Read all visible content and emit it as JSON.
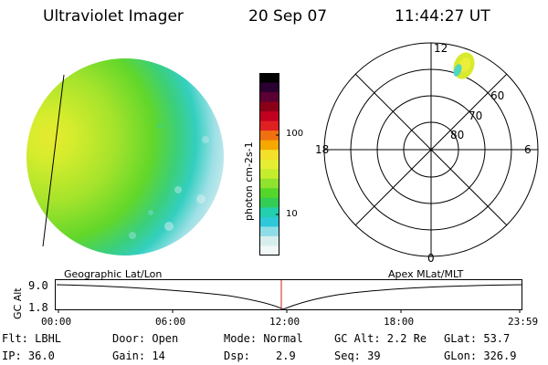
{
  "header": {
    "title": "Ultraviolet Imager",
    "date": "20 Sep 07",
    "time": "11:44:27 UT"
  },
  "colorbar": {
    "unit_label": "photon cm-2s-1",
    "tick_100": "100",
    "tick_10": "10",
    "colors": [
      "#000000",
      "#2a0030",
      "#5b0033",
      "#8a0018",
      "#c2001f",
      "#e02020",
      "#f07010",
      "#f5a800",
      "#f2e02a",
      "#e5ee33",
      "#c5ec2d",
      "#8fe22e",
      "#54d62a",
      "#33cc55",
      "#22cfae",
      "#2ec8d8",
      "#8edde6",
      "#d8eeee",
      "#f2f7f7"
    ]
  },
  "polar": {
    "labels": {
      "top": "12",
      "bottom": "0",
      "left": "18",
      "right": "6",
      "lat60": "60",
      "lat70": "70",
      "lat80": "80"
    }
  },
  "timeline": {
    "left_label": "Geographic Lat/Lon",
    "right_label": "Apex MLat/MLT",
    "axis_title": "GC Alt",
    "y_top": "9.0",
    "y_bottom": "1.8",
    "ticks": [
      "00:00",
      "06:00",
      "12:00",
      "18:00",
      "23:59"
    ],
    "marker_color": "#cc2222"
  },
  "info": {
    "flt": "Flt: LBHL",
    "ip": "IP: 36.0",
    "door": "Door: Open",
    "gain": "Gain: 14",
    "mode": "Mode: Normal",
    "dsp_label": "Dsp:",
    "dsp_value": "2.9",
    "gc_alt": "GC Alt: 2.2 Re",
    "seq": "Seq: 39",
    "glat": "GLat: 53.7",
    "glon": "GLon: 326.9"
  }
}
